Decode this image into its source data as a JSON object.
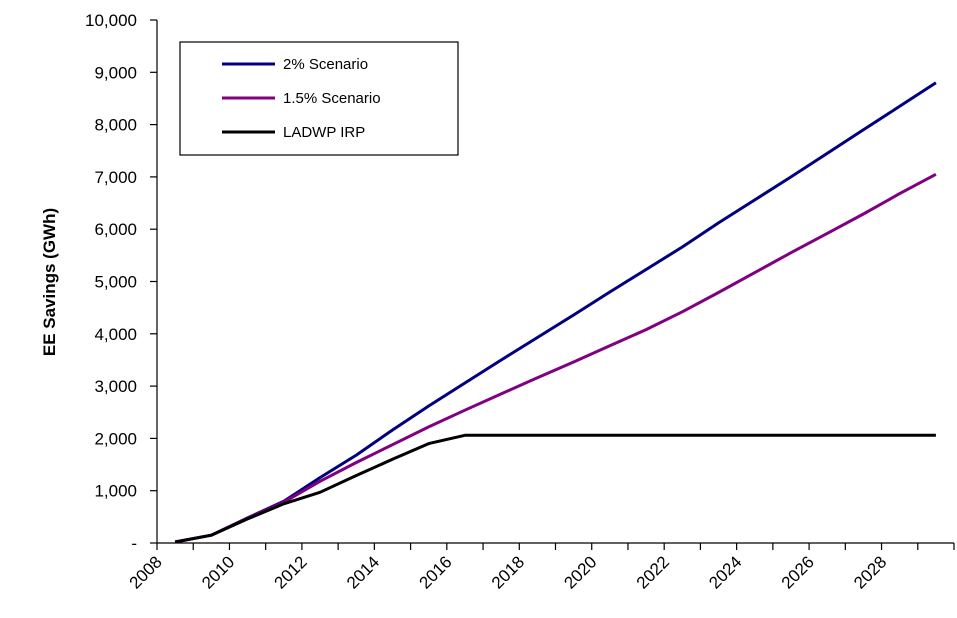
{
  "chart_data": {
    "type": "line",
    "title": "",
    "xlabel": "",
    "ylabel": "EE Savings (GWh)",
    "ylim": [
      0,
      10000
    ],
    "y_ticks": [
      0,
      1000,
      2000,
      3000,
      4000,
      5000,
      6000,
      7000,
      8000,
      9000,
      10000
    ],
    "y_tick_labels": [
      "-",
      "1,000",
      "2,000",
      "3,000",
      "4,000",
      "5,000",
      "6,000",
      "7,000",
      "8,000",
      "9,000",
      "10,000"
    ],
    "xlim": [
      2008,
      2030
    ],
    "x_ticks": [
      2008,
      2010,
      2012,
      2014,
      2016,
      2018,
      2020,
      2022,
      2024,
      2026,
      2028
    ],
    "x_tick_labels": [
      "2008",
      "2010",
      "2012",
      "2014",
      "2016",
      "2018",
      "2020",
      "2022",
      "2024",
      "2026",
      "2028"
    ],
    "grid": false,
    "legend_position": "top-left",
    "x": [
      2008.5,
      2009.5,
      2010.5,
      2011.5,
      2012.5,
      2013.5,
      2014.5,
      2015.5,
      2016.5,
      2017.5,
      2018.5,
      2019.5,
      2020.5,
      2021.5,
      2022.5,
      2023.5,
      2024.5,
      2025.5,
      2026.5,
      2027.5,
      2028.5,
      2029.5
    ],
    "series": [
      {
        "name": "2% Scenario",
        "color": "#000080",
        "values": [
          20,
          150,
          480,
          800,
          1250,
          1680,
          2160,
          2620,
          3060,
          3500,
          3930,
          4360,
          4800,
          5230,
          5660,
          6120,
          6560,
          7000,
          7450,
          7900,
          8350,
          8800
        ]
      },
      {
        "name": "1.5% Scenario",
        "color": "#800080",
        "values": [
          20,
          150,
          470,
          780,
          1180,
          1540,
          1880,
          2220,
          2540,
          2850,
          3160,
          3460,
          3770,
          4080,
          4420,
          4790,
          5170,
          5550,
          5920,
          6290,
          6680,
          7050
        ]
      },
      {
        "name": "LADWP IRP",
        "color": "#000000",
        "values": [
          20,
          150,
          460,
          750,
          970,
          1290,
          1600,
          1900,
          2060,
          2060,
          2060,
          2060,
          2060,
          2060,
          2060,
          2060,
          2060,
          2060,
          2060,
          2060,
          2060,
          2060
        ]
      }
    ]
  }
}
